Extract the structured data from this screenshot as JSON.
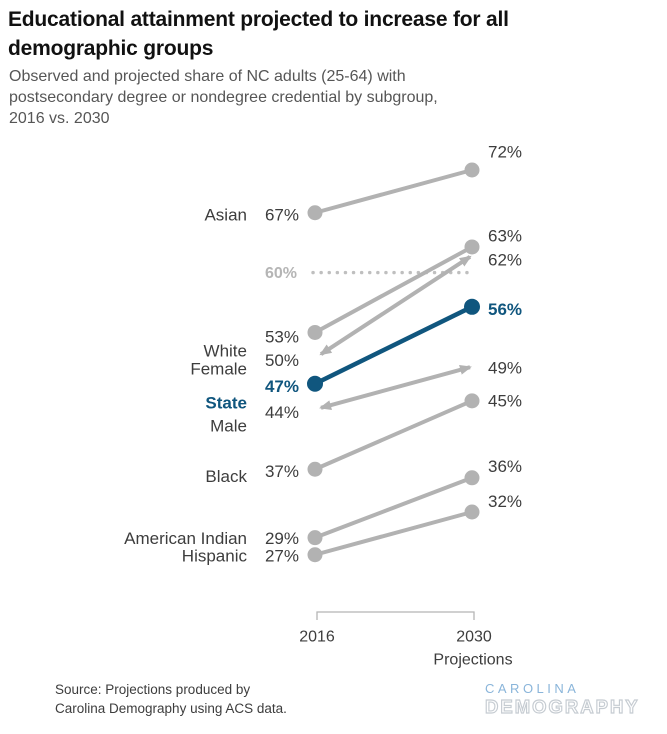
{
  "header": {
    "title_lines": [
      "Educational attainment projected to increase for all",
      "demographic groups"
    ],
    "subtitle_lines": [
      "Observed and projected share of NC adults (25-64) with",
      "postsecondary degree or nondegree credential by subgroup,",
      "2016 vs. 2030"
    ]
  },
  "chart_data": {
    "type": "line",
    "subtype": "slopegraph",
    "x": [
      "2016",
      "2030"
    ],
    "series": [
      {
        "name": "Asian",
        "values": [
          67,
          72
        ],
        "labels": [
          "67%",
          "72%"
        ],
        "marker": "circle",
        "emphasis": false
      },
      {
        "name": "White",
        "values": [
          53,
          63
        ],
        "labels": [
          "53%",
          "63%"
        ],
        "marker": "circle",
        "emphasis": false
      },
      {
        "name": "Female",
        "values": [
          50,
          62
        ],
        "labels": [
          "50%",
          "62%"
        ],
        "marker": "arrow",
        "emphasis": false
      },
      {
        "name": "State",
        "values": [
          47,
          56
        ],
        "labels": [
          "47%",
          "56%"
        ],
        "marker": "circle",
        "emphasis": true
      },
      {
        "name": "Male",
        "values": [
          44,
          49
        ],
        "labels": [
          "44%",
          "49%"
        ],
        "marker": "arrow",
        "emphasis": false
      },
      {
        "name": "Black",
        "values": [
          37,
          45
        ],
        "labels": [
          "37%",
          "45%"
        ],
        "marker": "circle",
        "emphasis": false
      },
      {
        "name": "American Indian",
        "values": [
          29,
          36
        ],
        "labels": [
          "29%",
          "36%"
        ],
        "marker": "circle",
        "emphasis": false
      },
      {
        "name": "Hispanic",
        "values": [
          27,
          32
        ],
        "labels": [
          "27%",
          "32%"
        ],
        "marker": "circle",
        "emphasis": false
      }
    ],
    "goal_line": {
      "value": 60,
      "label": "60%"
    },
    "x_axis": {
      "left_label": "2016",
      "right_label": "2030",
      "right_sublabel": "Projections"
    },
    "colors": {
      "gray": "#b2b2b2",
      "blue": "#10567e",
      "text_dark": "#3d3d3d",
      "goal_dots": "#bfbfbf",
      "goal_text": "#b5b5b5",
      "axis": "#b5b5b5"
    }
  },
  "footer": {
    "source_lines": [
      "Source: Projections produced by",
      "Carolina Demography using ACS data."
    ],
    "logo": {
      "line1": "CAROLINA",
      "line2": "DEMOGRAPHY"
    }
  }
}
